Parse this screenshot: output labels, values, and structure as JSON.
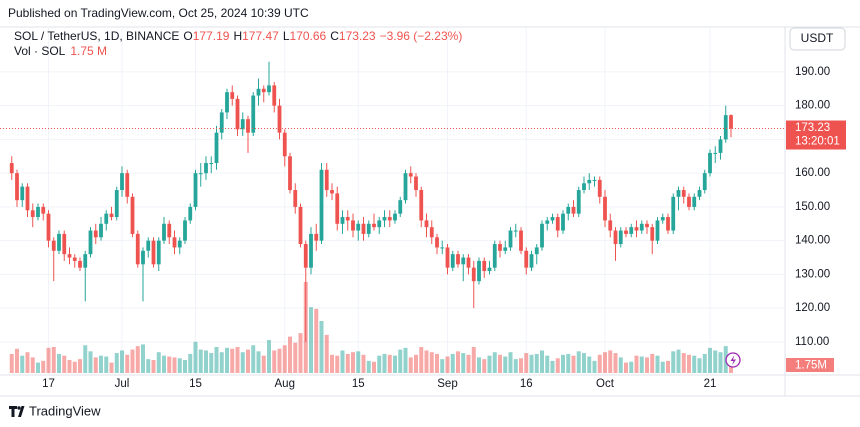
{
  "header": {
    "published": "Published on TradingView.com, Oct 25, 2024 10:39 UTC",
    "currency": "USDT",
    "brand": "TradingView"
  },
  "chart_data": {
    "type": "candlestick",
    "symbol": "SOL / TetherUS, 1D, BINANCE",
    "ohlc_letters": [
      "O",
      "H",
      "L",
      "C"
    ],
    "change": "−3.96 (−2.23%)",
    "volume_title": "Vol · SOL",
    "volume_legend": "1.75 M",
    "volume_tag": "1.75M",
    "countdown": "13:20:01",
    "up_color": "#26a69a",
    "down_color": "#ef5350",
    "grid": true,
    "x": [
      "2024-06-10",
      "2024-06-11",
      "2024-06-12",
      "2024-06-13",
      "2024-06-14",
      "2024-06-15",
      "2024-06-16",
      "2024-06-17",
      "2024-06-18",
      "2024-06-19",
      "2024-06-20",
      "2024-06-21",
      "2024-06-22",
      "2024-06-23",
      "2024-06-24",
      "2024-06-25",
      "2024-06-26",
      "2024-06-27",
      "2024-06-28",
      "2024-06-29",
      "2024-06-30",
      "2024-07-01",
      "2024-07-02",
      "2024-07-03",
      "2024-07-04",
      "2024-07-05",
      "2024-07-06",
      "2024-07-07",
      "2024-07-08",
      "2024-07-09",
      "2024-07-10",
      "2024-07-11",
      "2024-07-12",
      "2024-07-13",
      "2024-07-14",
      "2024-07-15",
      "2024-07-16",
      "2024-07-17",
      "2024-07-18",
      "2024-07-19",
      "2024-07-20",
      "2024-07-21",
      "2024-07-22",
      "2024-07-23",
      "2024-07-24",
      "2024-07-25",
      "2024-07-26",
      "2024-07-27",
      "2024-07-28",
      "2024-07-29",
      "2024-07-30",
      "2024-07-31",
      "2024-08-01",
      "2024-08-02",
      "2024-08-03",
      "2024-08-04",
      "2024-08-05",
      "2024-08-06",
      "2024-08-07",
      "2024-08-08",
      "2024-08-09",
      "2024-08-10",
      "2024-08-11",
      "2024-08-12",
      "2024-08-13",
      "2024-08-14",
      "2024-08-15",
      "2024-08-16",
      "2024-08-17",
      "2024-08-18",
      "2024-08-19",
      "2024-08-20",
      "2024-08-21",
      "2024-08-22",
      "2024-08-23",
      "2024-08-24",
      "2024-08-25",
      "2024-08-26",
      "2024-08-27",
      "2024-08-28",
      "2024-08-29",
      "2024-08-30",
      "2024-08-31",
      "2024-09-01",
      "2024-09-02",
      "2024-09-03",
      "2024-09-04",
      "2024-09-05",
      "2024-09-06",
      "2024-09-07",
      "2024-09-08",
      "2024-09-09",
      "2024-09-10",
      "2024-09-11",
      "2024-09-12",
      "2024-09-13",
      "2024-09-14",
      "2024-09-15",
      "2024-09-16",
      "2024-09-17",
      "2024-09-18",
      "2024-09-19",
      "2024-09-20",
      "2024-09-21",
      "2024-09-22",
      "2024-09-23",
      "2024-09-24",
      "2024-09-25",
      "2024-09-26",
      "2024-09-27",
      "2024-09-28",
      "2024-09-29",
      "2024-09-30",
      "2024-10-01",
      "2024-10-02",
      "2024-10-03",
      "2024-10-04",
      "2024-10-05",
      "2024-10-06",
      "2024-10-07",
      "2024-10-08",
      "2024-10-09",
      "2024-10-10",
      "2024-10-11",
      "2024-10-12",
      "2024-10-13",
      "2024-10-14",
      "2024-10-15",
      "2024-10-16",
      "2024-10-17",
      "2024-10-18",
      "2024-10-19",
      "2024-10-20",
      "2024-10-21",
      "2024-10-22",
      "2024-10-23",
      "2024-10-24",
      "2024-10-25"
    ],
    "open": [
      163,
      160,
      152,
      156,
      149,
      147,
      150,
      148,
      140,
      137,
      142,
      136,
      135,
      134,
      132,
      136,
      143,
      141,
      145,
      148,
      147,
      155,
      160,
      153,
      142,
      133,
      137,
      140,
      133,
      140,
      145,
      141,
      138,
      140,
      146,
      150,
      160,
      160,
      163,
      163,
      172,
      178,
      184,
      182,
      173,
      176,
      172,
      183,
      185,
      184,
      186,
      180,
      172,
      165,
      155,
      150,
      139,
      132,
      142,
      140,
      161,
      155,
      154,
      145,
      147,
      146,
      143,
      145,
      142,
      145,
      144,
      146,
      147,
      146,
      148,
      152,
      160,
      159,
      155,
      146,
      144,
      141,
      138,
      138,
      132,
      136,
      133,
      135,
      132,
      128,
      134,
      131,
      132,
      139,
      137,
      138,
      143,
      143,
      137,
      132,
      136,
      138,
      145,
      146,
      147,
      143,
      148,
      150,
      148,
      155,
      157,
      158,
      158,
      153,
      146,
      143,
      139,
      143,
      142,
      144,
      143,
      145,
      144,
      140,
      146,
      147,
      143,
      153,
      155,
      153,
      150,
      153,
      155,
      160,
      166,
      166,
      170,
      177.19
    ],
    "high": [
      165,
      161,
      157,
      157,
      151,
      151,
      151,
      149,
      141,
      143,
      143,
      138,
      136,
      135,
      137,
      144,
      145,
      147,
      149,
      150,
      156,
      162,
      161,
      154,
      143,
      138,
      141,
      141,
      141,
      147,
      146,
      143,
      141,
      147,
      151,
      161,
      163,
      165,
      165,
      174,
      179,
      185,
      186,
      183,
      178,
      177,
      184,
      188,
      186,
      193,
      187,
      182,
      173,
      166,
      157,
      151,
      140,
      144,
      145,
      163,
      163,
      157,
      156,
      149,
      149,
      148,
      146,
      147,
      146,
      148,
      147,
      149,
      149,
      149,
      153,
      161,
      162,
      160,
      156,
      148,
      146,
      142,
      140,
      139,
      137,
      137,
      136,
      136,
      134,
      135,
      135,
      134,
      140,
      140,
      140,
      144,
      145,
      144,
      138,
      137,
      139,
      146,
      147,
      148,
      148,
      149,
      151,
      152,
      156,
      159,
      160,
      159,
      159,
      155,
      148,
      144,
      144,
      144,
      145,
      146,
      146,
      146,
      145,
      147,
      148,
      148,
      154,
      156,
      156,
      154,
      154,
      156,
      161,
      167,
      168,
      171,
      180,
      177.47
    ],
    "low": [
      158,
      150,
      150,
      147,
      144,
      146,
      146,
      138,
      128,
      136,
      134,
      133,
      132,
      131,
      122,
      135,
      139,
      140,
      143,
      146,
      146,
      153,
      151,
      141,
      132,
      122,
      135,
      132,
      131,
      139,
      139,
      136,
      136,
      139,
      145,
      149,
      156,
      158,
      160,
      161,
      170,
      176,
      180,
      171,
      171,
      166,
      171,
      180,
      181,
      183,
      178,
      170,
      162,
      154,
      148,
      138,
      110,
      130,
      137,
      139,
      153,
      152,
      143,
      142,
      143,
      141,
      140,
      140,
      141,
      143,
      142,
      144,
      144,
      145,
      147,
      151,
      157,
      153,
      144,
      141,
      139,
      136,
      136,
      130,
      131,
      132,
      128,
      130,
      120,
      127,
      129,
      130,
      131,
      135,
      136,
      137,
      141,
      136,
      130,
      131,
      133,
      137,
      143,
      145,
      141,
      142,
      146,
      147,
      147,
      154,
      155,
      156,
      151,
      144,
      141,
      134,
      138,
      141,
      141,
      141,
      142,
      142,
      136,
      139,
      145,
      142,
      142,
      149,
      151,
      149,
      149,
      152,
      154,
      159,
      163,
      164,
      169,
      170.66
    ],
    "close": [
      160,
      152,
      156,
      149,
      147,
      150,
      148,
      140,
      137,
      142,
      136,
      135,
      134,
      132,
      136,
      143,
      141,
      145,
      148,
      147,
      155,
      160,
      153,
      142,
      133,
      137,
      140,
      133,
      140,
      145,
      141,
      138,
      140,
      146,
      150,
      160,
      160,
      163,
      163,
      172,
      178,
      184,
      182,
      173,
      176,
      172,
      183,
      185,
      184,
      186,
      180,
      172,
      165,
      155,
      150,
      139,
      132,
      142,
      140,
      161,
      155,
      154,
      145,
      147,
      146,
      143,
      145,
      142,
      145,
      144,
      146,
      147,
      146,
      148,
      152,
      160,
      159,
      155,
      146,
      144,
      141,
      138,
      138,
      132,
      136,
      133,
      135,
      132,
      128,
      134,
      131,
      132,
      139,
      137,
      138,
      143,
      143,
      137,
      132,
      136,
      138,
      145,
      146,
      147,
      143,
      148,
      150,
      148,
      155,
      157,
      158,
      158,
      153,
      146,
      143,
      139,
      143,
      142,
      144,
      143,
      145,
      144,
      140,
      146,
      147,
      143,
      153,
      155,
      153,
      150,
      153,
      155,
      160,
      166,
      166,
      170,
      177.19,
      173.23
    ],
    "volume": [
      2.2,
      2.8,
      2.0,
      2.4,
      1.8,
      1.2,
      1.4,
      2.9,
      3.0,
      2.2,
      2.0,
      1.5,
      1.3,
      1.6,
      3.2,
      2.5,
      1.8,
      2.0,
      1.9,
      1.2,
      2.3,
      2.6,
      2.1,
      2.7,
      3.1,
      3.3,
      1.6,
      1.5,
      2.4,
      2.0,
      1.9,
      1.8,
      1.7,
      1.5,
      2.2,
      3.6,
      2.7,
      2.6,
      2.3,
      3.0,
      2.4,
      2.9,
      2.8,
      3.0,
      2.4,
      2.7,
      3.2,
      2.5,
      2.0,
      3.8,
      2.6,
      2.8,
      3.2,
      4.2,
      3.5,
      4.6,
      10.5,
      7.6,
      7.4,
      6.0,
      4.4,
      2.1,
      2.0,
      2.6,
      2.2,
      2.4,
      2.5,
      2.1,
      1.4,
      1.3,
      2.0,
      2.2,
      2.1,
      2.0,
      2.7,
      2.9,
      1.8,
      2.1,
      3.0,
      2.6,
      2.4,
      2.2,
      1.6,
      1.9,
      2.2,
      2.5,
      2.3,
      2.1,
      3.0,
      1.8,
      1.6,
      2.0,
      2.4,
      2.1,
      1.9,
      2.4,
      1.6,
      1.7,
      2.3,
      2.1,
      2.2,
      2.6,
      2.0,
      1.4,
      1.7,
      2.1,
      2.2,
      2.0,
      2.5,
      2.3,
      1.9,
      1.4,
      2.1,
      2.4,
      2.6,
      2.3,
      1.8,
      1.2,
      1.3,
      2.0,
      1.9,
      1.8,
      2.2,
      2.0,
      1.3,
      1.4,
      2.5,
      2.7,
      2.3,
      2.1,
      2.0,
      1.7,
      2.2,
      2.9,
      2.6,
      2.4,
      3.1,
      1.75
    ],
    "volume_lim": [
      0,
      12
    ],
    "ylim": [
      100.2,
      195.9
    ],
    "yticks": [
      {
        "value": 110,
        "label": "110.00"
      },
      {
        "value": 120,
        "label": "120.00"
      },
      {
        "value": 130,
        "label": "130.00"
      },
      {
        "value": 140,
        "label": "140.00"
      },
      {
        "value": 150,
        "label": "150.00"
      },
      {
        "value": 160,
        "label": "160.00"
      },
      {
        "value": 170,
        "label": "170.00"
      },
      {
        "value": 180,
        "label": "180.00"
      },
      {
        "value": 190,
        "label": "190.00"
      }
    ],
    "xticks": [
      {
        "value": "2024-06-17",
        "label": "17"
      },
      {
        "value": "2024-07-01",
        "label": "Jul"
      },
      {
        "value": "2024-07-15",
        "label": "15"
      },
      {
        "value": "2024-08-01",
        "label": "Aug"
      },
      {
        "value": "2024-08-15",
        "label": "15"
      },
      {
        "value": "2024-09-01",
        "label": "Sep"
      },
      {
        "value": "2024-09-16",
        "label": "16"
      },
      {
        "value": "2024-10-01",
        "label": "Oct"
      },
      {
        "value": "2024-10-21",
        "label": "21"
      }
    ]
  }
}
